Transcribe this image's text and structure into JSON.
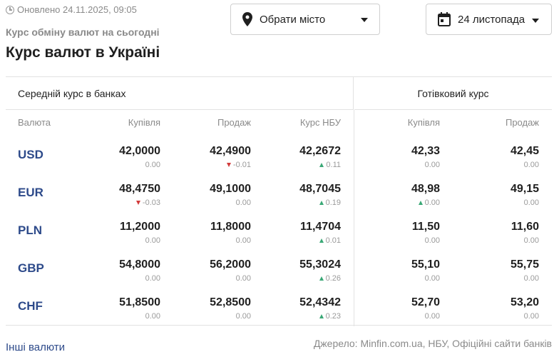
{
  "header": {
    "updated": "Оновлено 24.11.2025, 09:05",
    "subtitle": "Курс обміну валют на сьогодні",
    "title": "Курс валют в Україні",
    "city_placeholder": "Обрати місто",
    "date_value": "24 листопада"
  },
  "table": {
    "section_avg": "Середній курс в банках",
    "section_cash": "Готівковий курс",
    "columns": {
      "currency": "Валюта",
      "buy": "Купівля",
      "sell": "Продаж",
      "nbu": "Курс НБУ",
      "cash_buy": "Купівля",
      "cash_sell": "Продаж"
    },
    "rows": [
      {
        "code": "USD",
        "buy": "42,0000",
        "buy_chg": "0.00",
        "buy_dir": "none",
        "sell": "42,4900",
        "sell_chg": "-0.01",
        "sell_dir": "down",
        "nbu": "42,2672",
        "nbu_chg": "0.11",
        "nbu_dir": "up",
        "cash_buy": "42,33",
        "cash_buy_chg": "0.00",
        "cash_buy_dir": "none",
        "cash_sell": "42,45",
        "cash_sell_chg": "0.00",
        "cash_sell_dir": "none"
      },
      {
        "code": "EUR",
        "buy": "48,4750",
        "buy_chg": "-0.03",
        "buy_dir": "down",
        "sell": "49,1000",
        "sell_chg": "0.00",
        "sell_dir": "none",
        "nbu": "48,7045",
        "nbu_chg": "0.19",
        "nbu_dir": "up",
        "cash_buy": "48,98",
        "cash_buy_chg": "0.00",
        "cash_buy_dir": "up",
        "cash_sell": "49,15",
        "cash_sell_chg": "0.00",
        "cash_sell_dir": "none"
      },
      {
        "code": "PLN",
        "buy": "11,2000",
        "buy_chg": "0.00",
        "buy_dir": "none",
        "sell": "11,8000",
        "sell_chg": "0.00",
        "sell_dir": "none",
        "nbu": "11,4704",
        "nbu_chg": "0.01",
        "nbu_dir": "up",
        "cash_buy": "11,50",
        "cash_buy_chg": "0.00",
        "cash_buy_dir": "none",
        "cash_sell": "11,60",
        "cash_sell_chg": "0.00",
        "cash_sell_dir": "none"
      },
      {
        "code": "GBP",
        "buy": "54,8000",
        "buy_chg": "0.00",
        "buy_dir": "none",
        "sell": "56,2000",
        "sell_chg": "0.00",
        "sell_dir": "none",
        "nbu": "55,3024",
        "nbu_chg": "0.26",
        "nbu_dir": "up",
        "cash_buy": "55,10",
        "cash_buy_chg": "0.00",
        "cash_buy_dir": "none",
        "cash_sell": "55,75",
        "cash_sell_chg": "0.00",
        "cash_sell_dir": "none"
      },
      {
        "code": "CHF",
        "buy": "51,8500",
        "buy_chg": "0.00",
        "buy_dir": "none",
        "sell": "52,8500",
        "sell_chg": "0.00",
        "sell_dir": "none",
        "nbu": "52,4342",
        "nbu_chg": "0.23",
        "nbu_dir": "up",
        "cash_buy": "52,70",
        "cash_buy_chg": "0.00",
        "cash_buy_dir": "none",
        "cash_sell": "53,20",
        "cash_sell_chg": "0.00",
        "cash_sell_dir": "none"
      }
    ]
  },
  "footer": {
    "other_link": "Інші валюти",
    "source": "Джерело: Minfin.com.ua, НБУ, Офіційні сайти банків"
  },
  "colors": {
    "link": "#2d4a8a",
    "up": "#3aa876",
    "down": "#d23b3b"
  }
}
